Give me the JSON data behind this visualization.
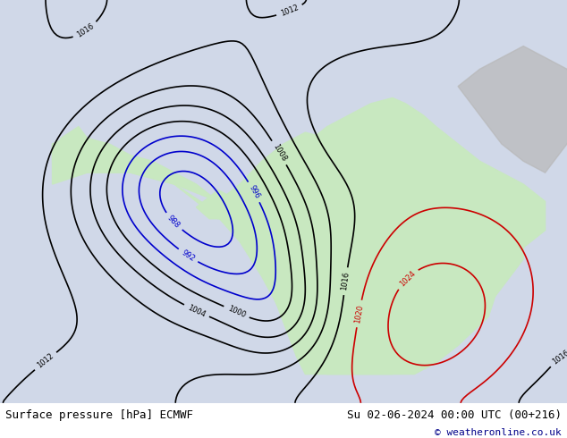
{
  "title_left": "Surface pressure [hPa] ECMWF",
  "title_right": "Su 02-06-2024 00:00 UTC (00+216)",
  "copyright": "© weatheronline.co.uk",
  "bg_color": "#d0d8e8",
  "land_color": "#c8e8c0",
  "coastline_color": "#888888",
  "water_color": "#d0d8e8",
  "contour_colors": {
    "low": "#0000cc",
    "mid": "#000000",
    "high": "#cc0000"
  },
  "figsize": [
    6.34,
    4.9
  ],
  "dpi": 100
}
